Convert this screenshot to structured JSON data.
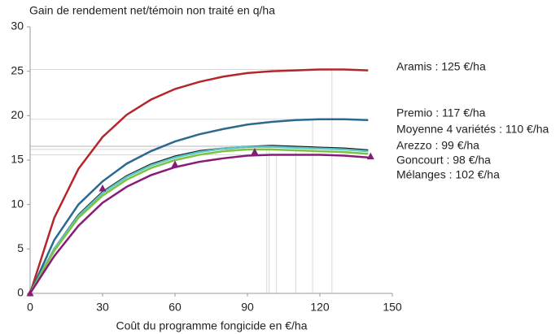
{
  "chart_data": {
    "type": "line",
    "title": "Gain de rendement net/témoin non traité en q/ha",
    "x_label": "Coût du programme fongicide en €/ha",
    "x": [
      0,
      10,
      20,
      30,
      40,
      50,
      60,
      70,
      80,
      90,
      100,
      110,
      120,
      130,
      140
    ],
    "xlim": [
      0,
      150
    ],
    "xticks": [
      0,
      30,
      60,
      90,
      120,
      150
    ],
    "ylim": [
      0,
      30
    ],
    "yticks": [
      0,
      5,
      10,
      15,
      20,
      25,
      30
    ],
    "grid": false,
    "series": [
      {
        "name": "Aramis : 125 €/ha",
        "color": "#b5262b",
        "optimum_x": 125,
        "optimum_y": 25.2,
        "values": [
          0,
          8.5,
          14,
          17.6,
          20.1,
          21.8,
          23,
          23.8,
          24.4,
          24.8,
          25,
          25.1,
          25.2,
          25.2,
          25.1
        ]
      },
      {
        "name": "Premio : 117 €/ha",
        "color": "#2b6a8e",
        "optimum_x": 117,
        "optimum_y": 19.6,
        "values": [
          0,
          6,
          10,
          12.6,
          14.6,
          16,
          17.1,
          17.9,
          18.5,
          19,
          19.3,
          19.5,
          19.6,
          19.6,
          19.5
        ]
      },
      {
        "name": "Moyenne 4 variétés : 110 €/ha",
        "color": "#1a1a1a",
        "optimum_x": 110,
        "optimum_y": 16.6,
        "values": [
          0,
          5,
          8.8,
          11.4,
          13.2,
          14.5,
          15.4,
          16,
          16.3,
          16.5,
          16.6,
          16.5,
          16.4,
          16.3,
          16.1
        ]
      },
      {
        "name": "Arezzo : 99 €/ha",
        "color": "#5cc6c8",
        "optimum_x": 99,
        "optimum_y": 16.5,
        "values": [
          0,
          5,
          8.7,
          11.3,
          13.1,
          14.4,
          15.3,
          15.9,
          16.3,
          16.5,
          16.5,
          16.4,
          16.3,
          16.2,
          16
        ]
      },
      {
        "name": "Goncourt : 98 €/ha",
        "color": "#7cc243",
        "optimum_x": 98,
        "optimum_y": 16.2,
        "values": [
          0,
          4.8,
          8.5,
          11,
          12.8,
          14.1,
          15,
          15.6,
          16,
          16.2,
          16.2,
          16.1,
          16,
          15.9,
          15.7
        ]
      },
      {
        "name": "Mélanges : 102 €/ha",
        "color": "#8a1a7a",
        "optimum_x": 102,
        "optimum_y": 15.6,
        "values": [
          0,
          4.2,
          7.6,
          10.2,
          12,
          13.3,
          14.2,
          14.8,
          15.2,
          15.5,
          15.6,
          15.6,
          15.6,
          15.5,
          15.3
        ],
        "marker_x": [
          0,
          30,
          60,
          93,
          141
        ],
        "marker_y": [
          0,
          11.8,
          14.5,
          15.9,
          15.4
        ]
      }
    ]
  }
}
